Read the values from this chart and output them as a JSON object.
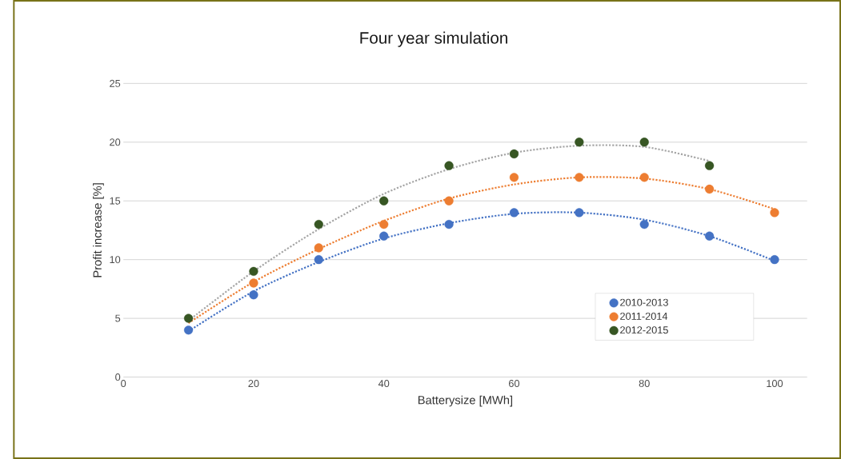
{
  "chart_data": {
    "type": "scatter",
    "title": "Four year simulation",
    "xlabel": "Batterysize [MWh]",
    "ylabel": "Profit increase [%]",
    "xlim": [
      0,
      105
    ],
    "ylim": [
      0,
      25
    ],
    "xticks": [
      0,
      20,
      40,
      60,
      80,
      100
    ],
    "yticks": [
      0,
      5,
      10,
      15,
      20,
      25
    ],
    "grid": "y",
    "legend": "bottom right",
    "marker": "circle",
    "series": [
      {
        "name": "2010-2013",
        "color": "#4472c4",
        "x": [
          10,
          20,
          30,
          40,
          50,
          60,
          70,
          80,
          90,
          100
        ],
        "values": [
          4,
          7,
          10,
          12,
          13,
          14,
          14,
          13,
          12,
          10
        ]
      },
      {
        "name": "2011-2014",
        "color": "#ed7d31",
        "x": [
          20,
          30,
          40,
          50,
          60,
          70,
          80,
          90,
          100
        ],
        "values": [
          8,
          11,
          13,
          15,
          17,
          17,
          17,
          16,
          14
        ]
      },
      {
        "name": "2012-2015",
        "color": "#375623",
        "x": [
          10,
          20,
          30,
          40,
          50,
          60,
          70,
          80,
          90
        ],
        "values": [
          5,
          9,
          13,
          15,
          18,
          19,
          20,
          20,
          18
        ]
      },
      {
        "type": "line",
        "line_style": "dotted",
        "marker": "none",
        "color": "#4472c4",
        "x": [
          10,
          20,
          30,
          40,
          50,
          60,
          70,
          80,
          90,
          100
        ],
        "values": [
          3.9,
          7.3,
          9.8,
          11.8,
          13.1,
          13.9,
          14.0,
          13.4,
          12.0,
          9.9
        ]
      },
      {
        "type": "line",
        "line_style": "dotted",
        "marker": "none",
        "color": "#ed7d31",
        "x": [
          10,
          20,
          30,
          40,
          50,
          60,
          70,
          80,
          90,
          100
        ],
        "values": [
          4.6,
          8.1,
          10.9,
          13.3,
          15.2,
          16.4,
          17.0,
          16.9,
          16.0,
          14.3
        ]
      },
      {
        "type": "line",
        "line_style": "dotted",
        "marker": "none",
        "color": "#a5a5a5",
        "x": [
          10,
          20,
          30,
          40,
          50,
          60,
          70,
          80,
          90
        ],
        "values": [
          4.8,
          9.0,
          12.6,
          15.6,
          17.7,
          19.1,
          19.7,
          19.6,
          18.4
        ]
      }
    ]
  }
}
